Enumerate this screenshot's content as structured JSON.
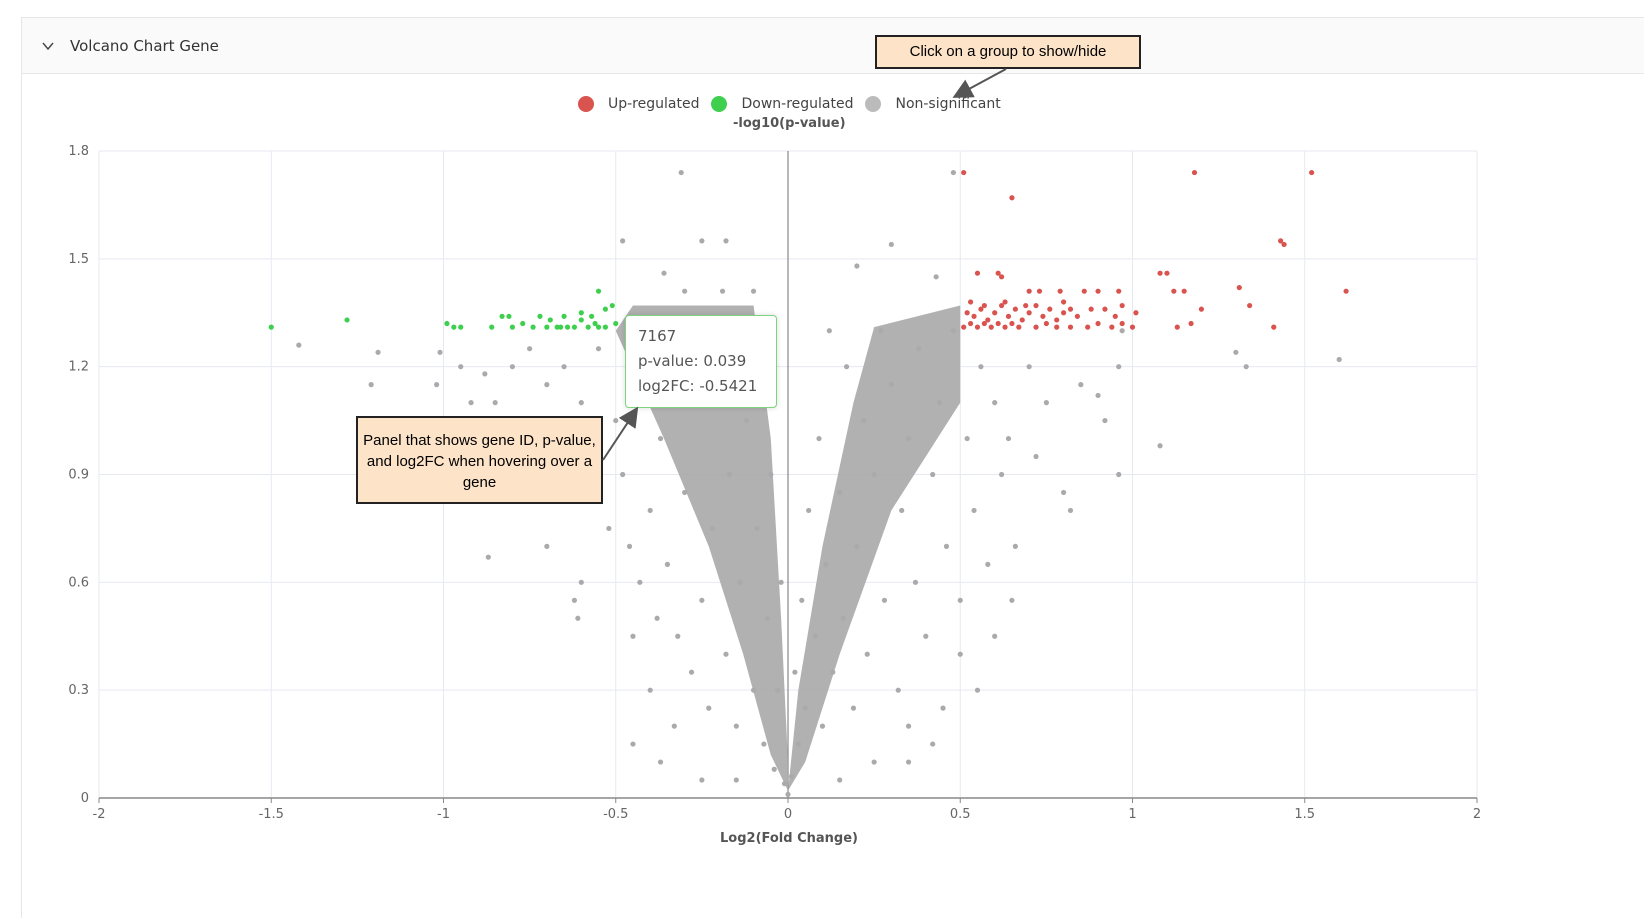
{
  "panel": {
    "title": "Volcano Chart Gene",
    "collapse_icon": "chevron-down-icon"
  },
  "annotations": {
    "legend_hint": "Click on a group to show/hide",
    "tooltip_hint": "Panel that shows gene ID, p-value, and log2FC when hovering over a gene"
  },
  "tooltip": {
    "gene_id": "7167",
    "pvalue": "p-value: 0.039",
    "log2fc": "log2FC: -0.5421"
  },
  "chart_data": {
    "type": "scatter",
    "xlabel": "Log2(Fold Change)",
    "ylabel": "-log10(p-value)",
    "xlim": [
      -2,
      2
    ],
    "ylim": [
      0,
      1.8
    ],
    "xticks": [
      "-2",
      "-1.5",
      "-1",
      "-0.5",
      "0",
      "0.5",
      "1",
      "1.5",
      "2"
    ],
    "yticks": [
      "0",
      "0.3",
      "0.6",
      "0.9",
      "1.2",
      "1.5",
      "1.8"
    ],
    "grid": true,
    "legend_placement": "top-center",
    "series": [
      {
        "name": "Up-regulated",
        "color": "#d9534f",
        "points": [
          [
            0.51,
            1.74
          ],
          [
            0.65,
            1.67
          ],
          [
            1.18,
            1.74
          ],
          [
            1.52,
            1.74
          ],
          [
            1.43,
            1.55
          ],
          [
            1.44,
            1.54
          ],
          [
            1.08,
            1.46
          ],
          [
            1.1,
            1.46
          ],
          [
            0.55,
            1.46
          ],
          [
            0.61,
            1.46
          ],
          [
            0.62,
            1.45
          ],
          [
            1.12,
            1.41
          ],
          [
            1.15,
            1.41
          ],
          [
            1.31,
            1.42
          ],
          [
            1.62,
            1.41
          ],
          [
            1.34,
            1.37
          ],
          [
            1.2,
            1.36
          ],
          [
            1.13,
            1.31
          ],
          [
            1.17,
            1.32
          ],
          [
            1.41,
            1.31
          ],
          [
            0.7,
            1.41
          ],
          [
            0.73,
            1.41
          ],
          [
            0.79,
            1.41
          ],
          [
            0.86,
            1.41
          ],
          [
            0.9,
            1.41
          ],
          [
            0.96,
            1.41
          ],
          [
            0.52,
            1.35
          ],
          [
            0.54,
            1.34
          ],
          [
            0.56,
            1.36
          ],
          [
            0.58,
            1.33
          ],
          [
            0.6,
            1.35
          ],
          [
            0.62,
            1.37
          ],
          [
            0.64,
            1.34
          ],
          [
            0.66,
            1.36
          ],
          [
            0.68,
            1.33
          ],
          [
            0.7,
            1.35
          ],
          [
            0.72,
            1.37
          ],
          [
            0.74,
            1.34
          ],
          [
            0.76,
            1.36
          ],
          [
            0.78,
            1.33
          ],
          [
            0.8,
            1.35
          ],
          [
            0.82,
            1.36
          ],
          [
            0.84,
            1.34
          ],
          [
            0.88,
            1.36
          ],
          [
            0.92,
            1.36
          ],
          [
            0.95,
            1.34
          ],
          [
            0.97,
            1.37
          ],
          [
            1.01,
            1.35
          ],
          [
            0.51,
            1.31
          ],
          [
            0.53,
            1.32
          ],
          [
            0.55,
            1.31
          ],
          [
            0.57,
            1.32
          ],
          [
            0.59,
            1.31
          ],
          [
            0.61,
            1.32
          ],
          [
            0.63,
            1.31
          ],
          [
            0.65,
            1.32
          ],
          [
            0.67,
            1.31
          ],
          [
            0.72,
            1.31
          ],
          [
            0.75,
            1.32
          ],
          [
            0.78,
            1.31
          ],
          [
            0.82,
            1.31
          ],
          [
            0.87,
            1.31
          ],
          [
            0.9,
            1.32
          ],
          [
            0.94,
            1.31
          ],
          [
            0.97,
            1.32
          ],
          [
            1.0,
            1.31
          ],
          [
            0.53,
            1.38
          ],
          [
            0.57,
            1.37
          ],
          [
            0.63,
            1.38
          ],
          [
            0.69,
            1.37
          ],
          [
            0.8,
            1.38
          ]
        ]
      },
      {
        "name": "Down-regulated",
        "color": "#3fcf4f",
        "points": [
          [
            -1.5,
            1.31
          ],
          [
            -1.28,
            1.33
          ],
          [
            -0.99,
            1.32
          ],
          [
            -0.97,
            1.31
          ],
          [
            -0.95,
            1.31
          ],
          [
            -0.86,
            1.31
          ],
          [
            -0.83,
            1.34
          ],
          [
            -0.81,
            1.34
          ],
          [
            -0.8,
            1.31
          ],
          [
            -0.77,
            1.32
          ],
          [
            -0.72,
            1.34
          ],
          [
            -0.7,
            1.31
          ],
          [
            -0.69,
            1.33
          ],
          [
            -0.67,
            1.31
          ],
          [
            -0.66,
            1.31
          ],
          [
            -0.65,
            1.34
          ],
          [
            -0.62,
            1.31
          ],
          [
            -0.6,
            1.33
          ],
          [
            -0.6,
            1.35
          ],
          [
            -0.58,
            1.31
          ],
          [
            -0.57,
            1.34
          ],
          [
            -0.56,
            1.32
          ],
          [
            -0.55,
            1.41
          ],
          [
            -0.53,
            1.36
          ],
          [
            -0.53,
            1.31
          ],
          [
            -0.51,
            1.37
          ],
          [
            -0.5,
            1.32
          ],
          [
            -0.74,
            1.31
          ],
          [
            -0.64,
            1.31
          ],
          [
            -0.55,
            1.31
          ]
        ]
      },
      {
        "name": "Non-significant",
        "color": "#aaaaaa",
        "points": [
          [
            -0.31,
            1.74
          ],
          [
            -0.48,
            1.55
          ],
          [
            -0.25,
            1.55
          ],
          [
            -0.18,
            1.55
          ],
          [
            -0.36,
            1.46
          ],
          [
            0.2,
            1.48
          ],
          [
            0.3,
            1.54
          ],
          [
            0.48,
            1.74
          ],
          [
            0.43,
            1.45
          ],
          [
            -0.1,
            1.41
          ],
          [
            -0.19,
            1.41
          ],
          [
            -0.3,
            1.41
          ],
          [
            -1.42,
            1.26
          ],
          [
            -1.19,
            1.24
          ],
          [
            -1.21,
            1.15
          ],
          [
            -1.01,
            1.24
          ],
          [
            -1.02,
            1.15
          ],
          [
            -0.95,
            1.2
          ],
          [
            -0.92,
            1.1
          ],
          [
            -0.88,
            1.18
          ],
          [
            -0.85,
            1.1
          ],
          [
            -0.8,
            1.2
          ],
          [
            -0.78,
            1.05
          ],
          [
            -0.75,
            1.25
          ],
          [
            -0.7,
            1.15
          ],
          [
            -0.68,
            1.0
          ],
          [
            -0.65,
            1.2
          ],
          [
            -0.62,
            0.95
          ],
          [
            -0.6,
            1.1
          ],
          [
            -0.58,
            0.85
          ],
          [
            -0.55,
            1.25
          ],
          [
            -0.52,
            0.75
          ],
          [
            -0.5,
            1.05
          ],
          [
            -0.48,
            0.9
          ],
          [
            -0.46,
            0.7
          ],
          [
            -0.45,
            1.3
          ],
          [
            -0.43,
            0.6
          ],
          [
            -0.42,
            1.15
          ],
          [
            -0.4,
            0.8
          ],
          [
            -0.38,
            0.5
          ],
          [
            -0.37,
            1.0
          ],
          [
            -0.35,
            0.65
          ],
          [
            -0.34,
            1.3
          ],
          [
            -0.32,
            0.45
          ],
          [
            -0.3,
            0.85
          ],
          [
            -0.28,
            0.35
          ],
          [
            -0.27,
            1.1
          ],
          [
            -0.25,
            0.55
          ],
          [
            -0.23,
            0.25
          ],
          [
            -0.22,
            0.75
          ],
          [
            -0.2,
            1.2
          ],
          [
            -0.18,
            0.4
          ],
          [
            -0.17,
            0.9
          ],
          [
            -0.15,
            0.2
          ],
          [
            -0.14,
            0.6
          ],
          [
            -0.12,
            1.05
          ],
          [
            -0.1,
            0.3
          ],
          [
            -0.09,
            0.75
          ],
          [
            -0.07,
            0.15
          ],
          [
            -0.06,
            0.5
          ],
          [
            -0.05,
            0.9
          ],
          [
            -0.04,
            0.08
          ],
          [
            -0.03,
            0.3
          ],
          [
            -0.02,
            0.6
          ],
          [
            -0.01,
            0.04
          ],
          [
            0,
            0.01
          ],
          [
            0.01,
            0.06
          ],
          [
            0.02,
            0.35
          ],
          [
            0.03,
            0.15
          ],
          [
            0.04,
            0.55
          ],
          [
            0.05,
            0.25
          ],
          [
            0.06,
            0.8
          ],
          [
            0.08,
            0.45
          ],
          [
            0.09,
            1.0
          ],
          [
            0.1,
            0.2
          ],
          [
            0.11,
            0.65
          ],
          [
            0.12,
            1.3
          ],
          [
            0.13,
            0.35
          ],
          [
            0.15,
            0.85
          ],
          [
            0.16,
            0.5
          ],
          [
            0.17,
            1.2
          ],
          [
            0.19,
            0.25
          ],
          [
            0.2,
            0.7
          ],
          [
            0.22,
            1.05
          ],
          [
            0.23,
            0.4
          ],
          [
            0.25,
            0.9
          ],
          [
            0.27,
            1.3
          ],
          [
            0.28,
            0.55
          ],
          [
            0.3,
            1.15
          ],
          [
            0.32,
            0.3
          ],
          [
            0.33,
            0.8
          ],
          [
            0.35,
            1.0
          ],
          [
            0.37,
            0.6
          ],
          [
            0.38,
            1.25
          ],
          [
            0.4,
            0.45
          ],
          [
            0.42,
            0.9
          ],
          [
            0.44,
            1.1
          ],
          [
            0.46,
            0.7
          ],
          [
            0.48,
            1.3
          ],
          [
            0.5,
            0.55
          ],
          [
            0.52,
            1.0
          ],
          [
            0.54,
            0.8
          ],
          [
            0.56,
            1.2
          ],
          [
            0.58,
            0.65
          ],
          [
            0.6,
            1.1
          ],
          [
            0.62,
            0.9
          ],
          [
            0.64,
            1.0
          ],
          [
            0.66,
            0.7
          ],
          [
            0.7,
            1.2
          ],
          [
            0.72,
            0.95
          ],
          [
            0.75,
            1.1
          ],
          [
            0.8,
            0.85
          ],
          [
            0.82,
            0.8
          ],
          [
            0.85,
            1.15
          ],
          [
            0.9,
            1.12
          ],
          [
            0.96,
            1.2
          ],
          [
            0.97,
            1.3
          ],
          [
            0.96,
            0.9
          ],
          [
            0.92,
            1.05
          ],
          [
            1.08,
            0.98
          ],
          [
            1.33,
            1.2
          ],
          [
            1.3,
            1.24
          ],
          [
            1.6,
            1.22
          ],
          [
            -0.6,
            0.6
          ],
          [
            -0.61,
            0.5
          ],
          [
            -0.87,
            0.67
          ],
          [
            -0.7,
            0.7
          ],
          [
            -0.62,
            0.55
          ],
          [
            -0.45,
            0.45
          ],
          [
            -0.4,
            0.3
          ],
          [
            -0.33,
            0.2
          ],
          [
            -0.45,
            0.15
          ],
          [
            -0.37,
            0.1
          ],
          [
            -0.25,
            0.05
          ],
          [
            0.25,
            0.1
          ],
          [
            0.35,
            0.2
          ],
          [
            0.42,
            0.15
          ],
          [
            0.55,
            0.3
          ],
          [
            0.6,
            0.45
          ],
          [
            0.65,
            0.55
          ],
          [
            0.5,
            0.4
          ],
          [
            0.45,
            0.25
          ],
          [
            0.35,
            0.1
          ],
          [
            0.15,
            0.05
          ],
          [
            -0.15,
            0.05
          ]
        ]
      }
    ]
  }
}
